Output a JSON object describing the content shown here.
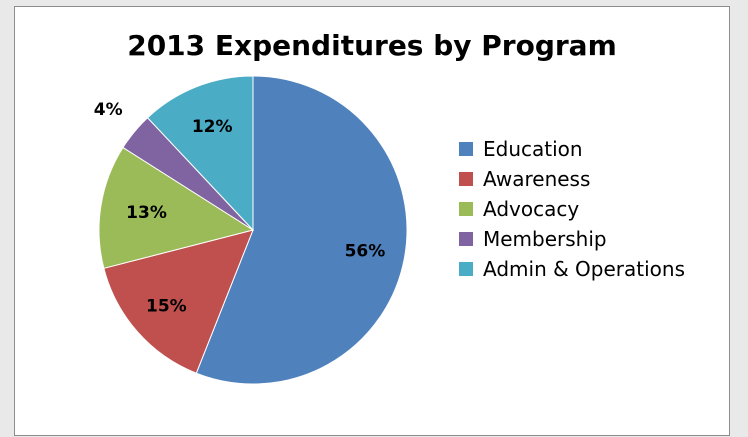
{
  "chart_data": {
    "type": "pie",
    "title": "2013 Expenditures by Program",
    "categories": [
      "Education",
      "Awareness",
      "Advocacy",
      "Membership",
      "Admin & Operations"
    ],
    "values": [
      56,
      15,
      13,
      4,
      12
    ],
    "value_labels": [
      "56%",
      "15%",
      "13%",
      "4%",
      "12%"
    ],
    "colors": [
      "#4f81bd",
      "#c0504d",
      "#9bbb59",
      "#8064a2",
      "#4bacc6"
    ],
    "start": "12 o'clock, clockwise",
    "legend_position": "right"
  }
}
